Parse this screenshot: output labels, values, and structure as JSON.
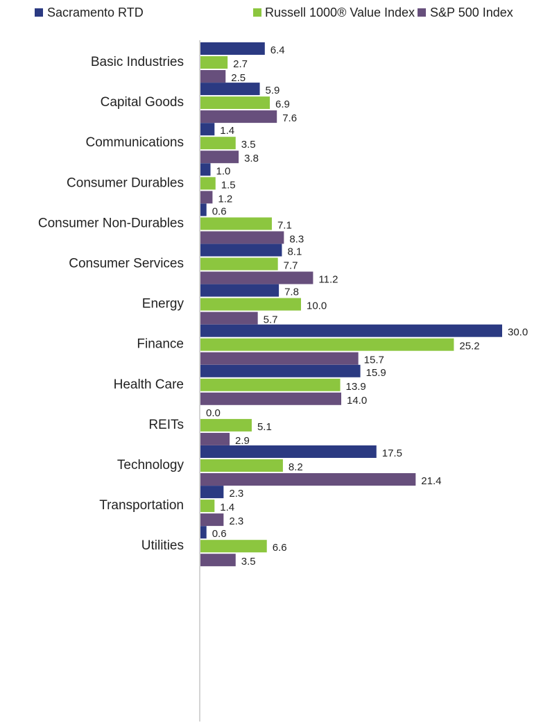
{
  "chart_data": {
    "type": "barh",
    "categories": [
      "Basic Industries",
      "Capital Goods",
      "Communications",
      "Consumer Durables",
      "Consumer Non-Durables",
      "Consumer Services",
      "Energy",
      "Finance",
      "Health Care",
      "REITs",
      "Technology",
      "Transportation",
      "Utilities"
    ],
    "series": [
      {
        "name": "Sacramento RTD",
        "color": "#2b3a82",
        "values": [
          6.4,
          5.9,
          1.4,
          1.0,
          0.6,
          8.1,
          7.8,
          30.0,
          15.9,
          0.0,
          17.5,
          2.3,
          0.6
        ],
        "value_labels": [
          "6.4",
          "5.9",
          "1.4",
          "1.0",
          "0.6",
          "8.1",
          "7.8",
          "30.0",
          "15.9",
          "0.0",
          "17.5",
          "2.3",
          "0.6"
        ]
      },
      {
        "name": "Russell 1000® Value Index",
        "color": "#8cc63f",
        "values": [
          2.7,
          6.9,
          3.5,
          1.5,
          7.1,
          7.7,
          10.0,
          25.2,
          13.9,
          5.1,
          8.2,
          1.4,
          6.6
        ],
        "value_labels": [
          "2.7",
          "6.9",
          "3.5",
          "1.5",
          "7.1",
          "7.7",
          "10.0",
          "25.2",
          "13.9",
          "5.1",
          "8.2",
          "1.4",
          "6.6"
        ]
      },
      {
        "name": "S&P 500 Index",
        "color": "#674f7c",
        "values": [
          2.5,
          7.6,
          3.8,
          1.2,
          8.3,
          11.2,
          5.7,
          15.7,
          14.0,
          2.9,
          21.4,
          2.3,
          3.5
        ],
        "value_labels": [
          "2.5",
          "7.6",
          "3.8",
          "1.2",
          "8.3",
          "11.2",
          "5.7",
          "15.7",
          "14.0",
          "2.9",
          "21.4",
          "2.3",
          "3.5"
        ]
      }
    ],
    "legend": "top"
  }
}
